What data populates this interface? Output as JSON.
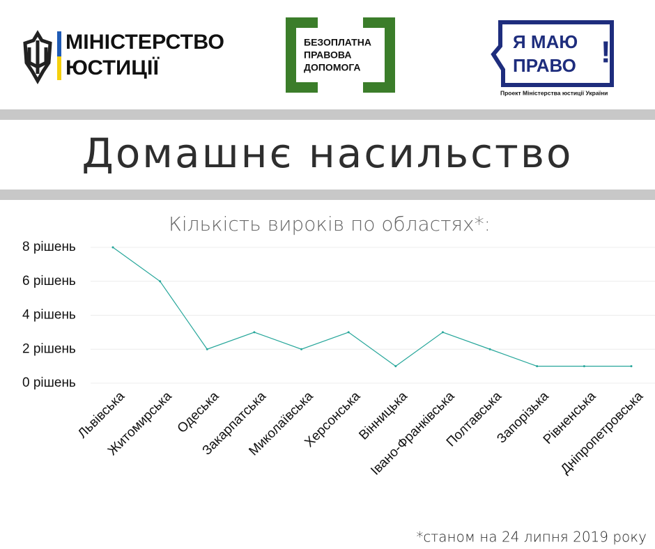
{
  "header": {
    "ministry": [
      "МІНІСТЕРСТВО",
      "ЮСТИЦІЇ"
    ],
    "legal_aid": [
      "БЕЗОПЛАТНА",
      "ПРАВОВА",
      "ДОПОМОГА"
    ],
    "project": {
      "lines": [
        "Я МАЮ",
        "ПРАВО"
      ],
      "mark": "!",
      "caption": "Проект Міністерства юстиції України"
    }
  },
  "chart_data": {
    "type": "line",
    "title": "Домашнє насильство",
    "subtitle": "Кількість вироків по областях*:",
    "footnote": "*станом на 24 липня 2019 року",
    "categories": [
      "Львівська",
      "Житомирська",
      "Одеська",
      "Закарпатська",
      "Миколаївська",
      "Херсонська",
      "Вінницька",
      "Івано-Франківська",
      "Полтавська",
      "Запорізька",
      "Рівненська",
      "Дніпропетровська"
    ],
    "values": [
      8,
      6,
      2,
      3,
      2,
      3,
      1,
      3,
      2,
      1,
      1,
      1
    ],
    "color": "#26a69a",
    "ylim": [
      0,
      8
    ],
    "yticks": [
      {
        "value": 0,
        "label": "0 рішень"
      },
      {
        "value": 2,
        "label": "2 рішень"
      },
      {
        "value": 4,
        "label": "4 рішень"
      },
      {
        "value": 6,
        "label": "6 рішень"
      },
      {
        "value": 8,
        "label": "8 рішень"
      }
    ],
    "grid": true
  }
}
